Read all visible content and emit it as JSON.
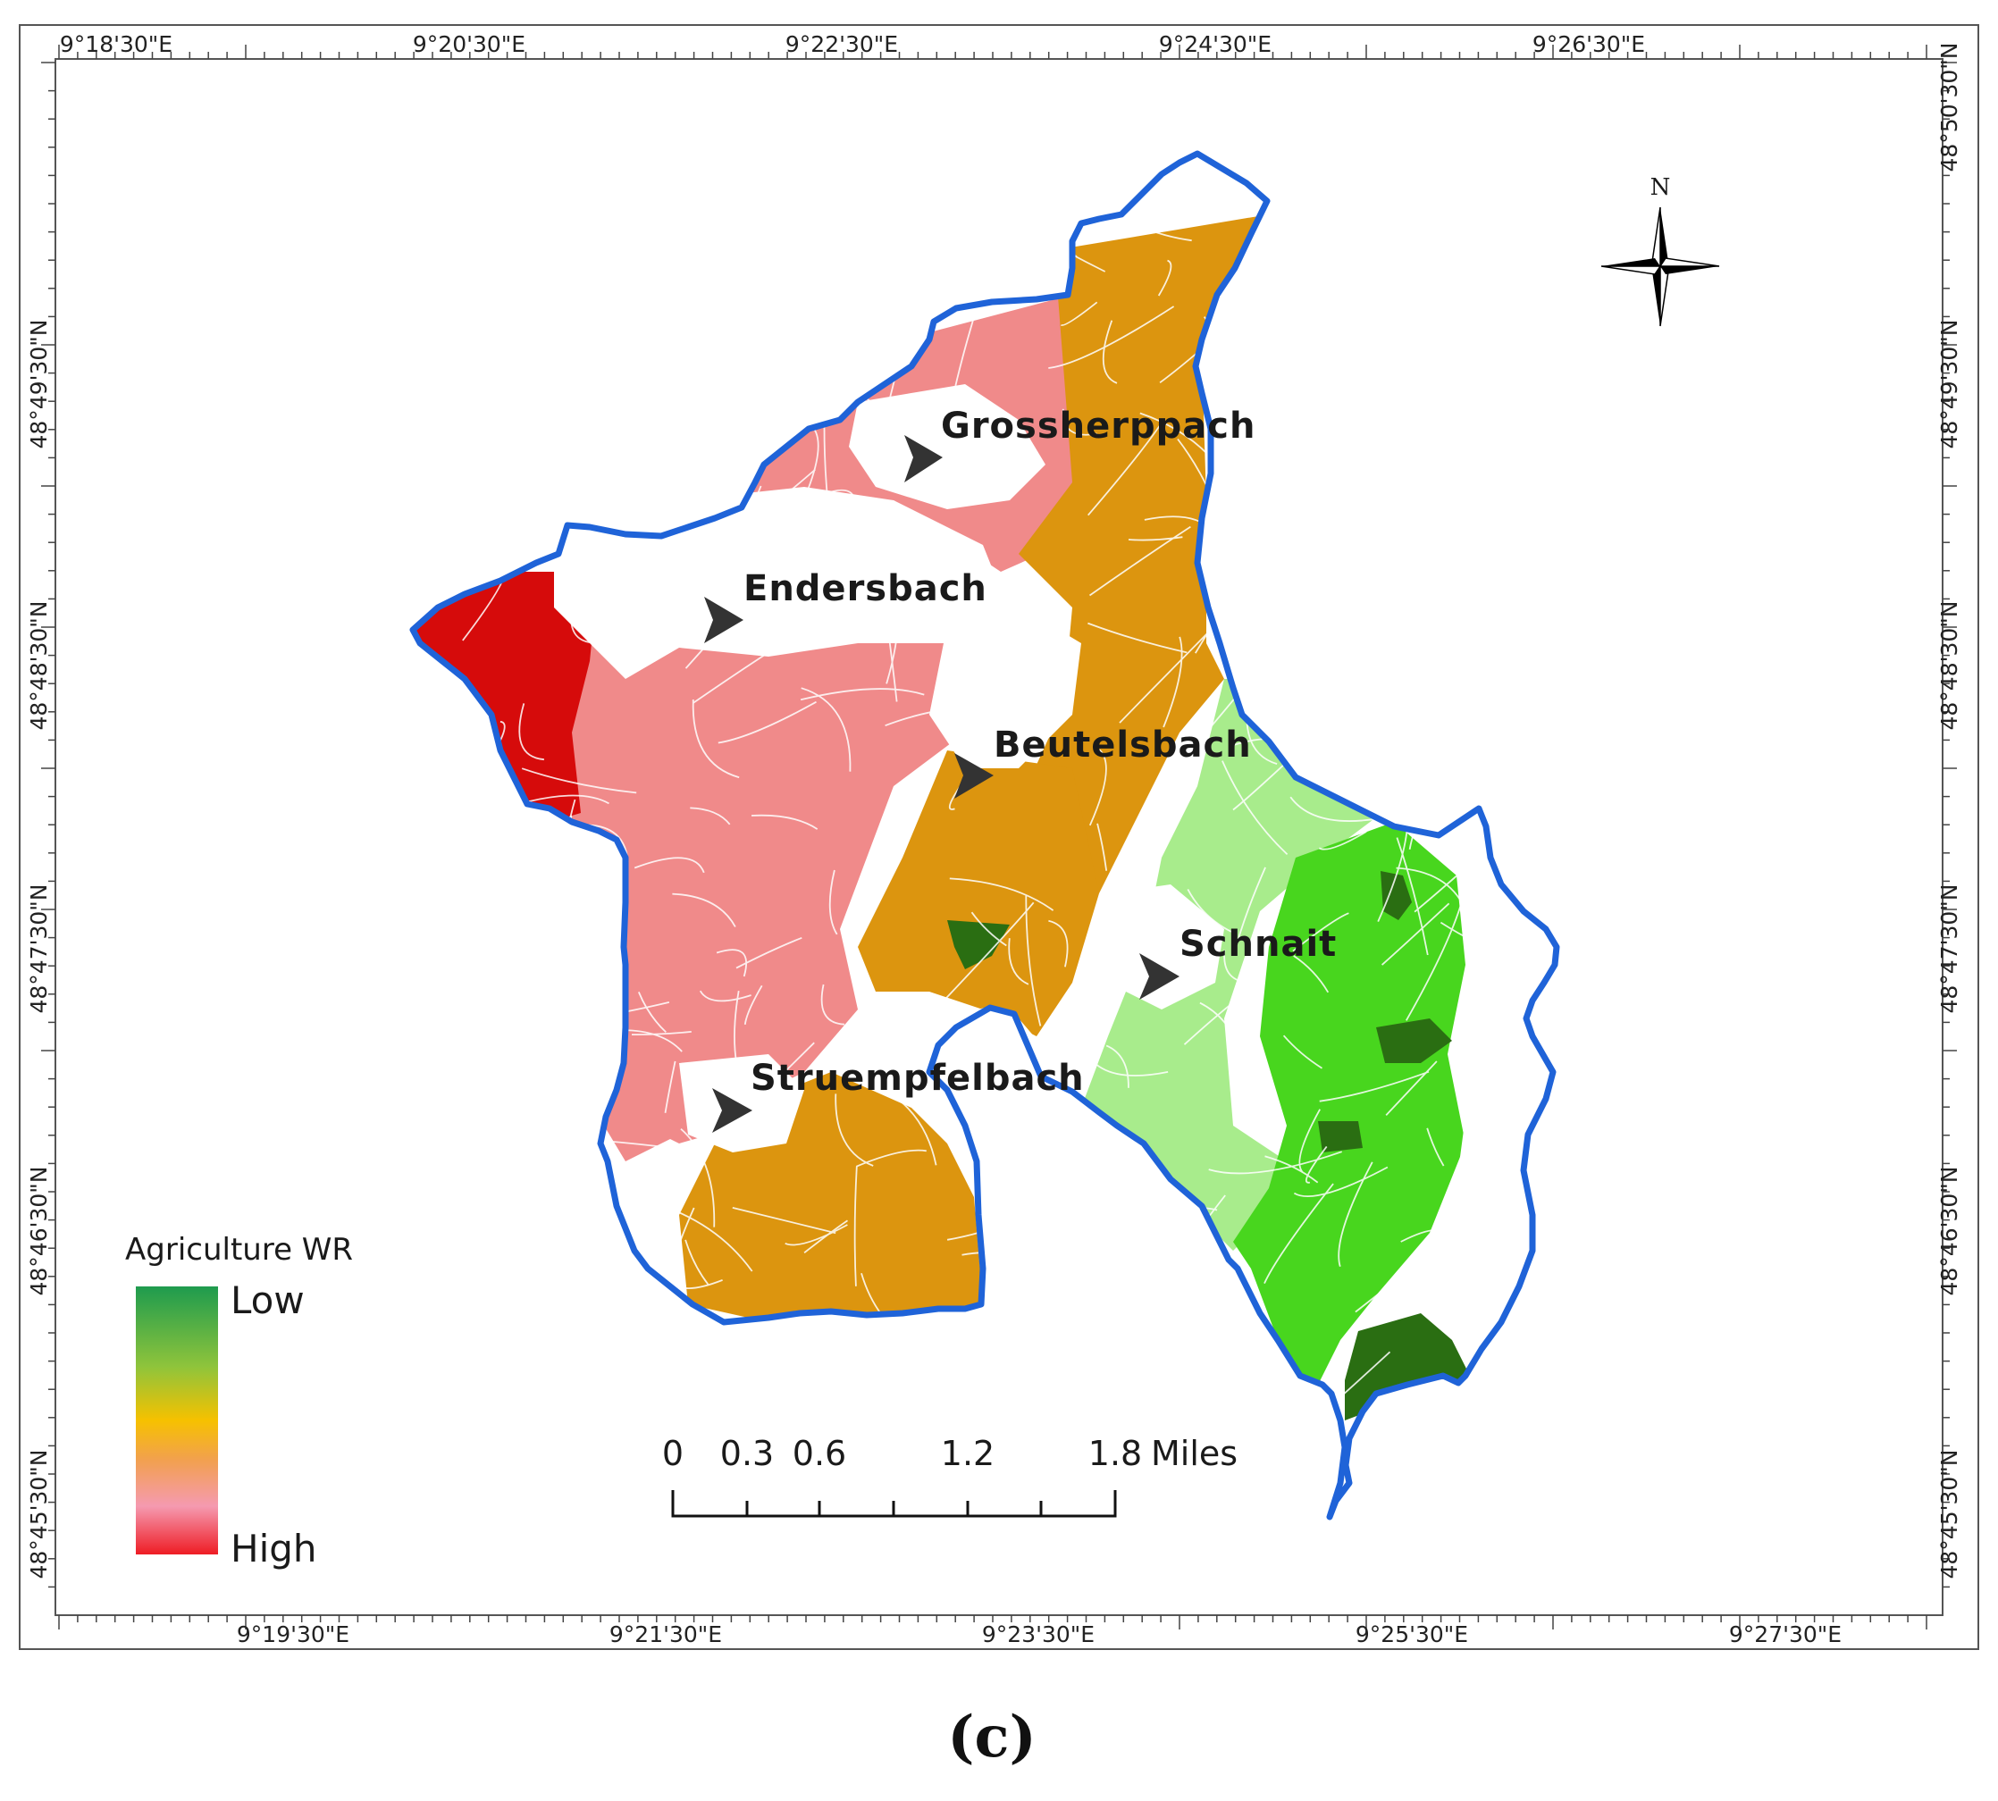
{
  "map": {
    "top_axis_labels": [
      "9°18'30\"E",
      "9°20'30\"E",
      "9°22'30\"E",
      "9°24'30\"E",
      "9°26'30\"E"
    ],
    "bottom_axis_labels": [
      "9°19'30\"E",
      "9°21'30\"E",
      "9°23'30\"E",
      "9°25'30\"E",
      "9°27'30\"E"
    ],
    "left_axis_labels": [
      "48°49'30\"N",
      "48°48'30\"N",
      "48°47'30\"N",
      "48°46'30\"N",
      "48°45'30\"N"
    ],
    "right_axis_labels": [
      "48°50'30\"N",
      "48°49'30\"N",
      "48°48'30\"N",
      "48°47'30\"N",
      "48°46'30\"N",
      "48°45'30\"N"
    ],
    "towns": [
      "Grossherppach",
      "Endersbach",
      "Beutelsbach",
      "Schnait",
      "Struempfelbach"
    ],
    "north_label": "N",
    "legend": {
      "title": "Agriculture WR",
      "low_label": "Low",
      "high_label": "High",
      "colors": [
        "#1e9b4e",
        "#5cc43b",
        "#f2c200",
        "#f7a93a",
        "#f59ab0",
        "#f2443e",
        "#ee1c24"
      ]
    },
    "scale_bar": {
      "ticks": [
        "0",
        "0.3",
        "0.6",
        "1.2",
        "1.8"
      ],
      "unit": "Miles"
    },
    "zone_colors": {
      "very_high": "#d60b0b",
      "high": "#f08a8a",
      "medium": "#dc950f",
      "low": "#a8ec8c",
      "lower": "#48d61e",
      "lowest": "#2a6e12",
      "boundary": "#1f63d8"
    },
    "caption": "(c)"
  }
}
